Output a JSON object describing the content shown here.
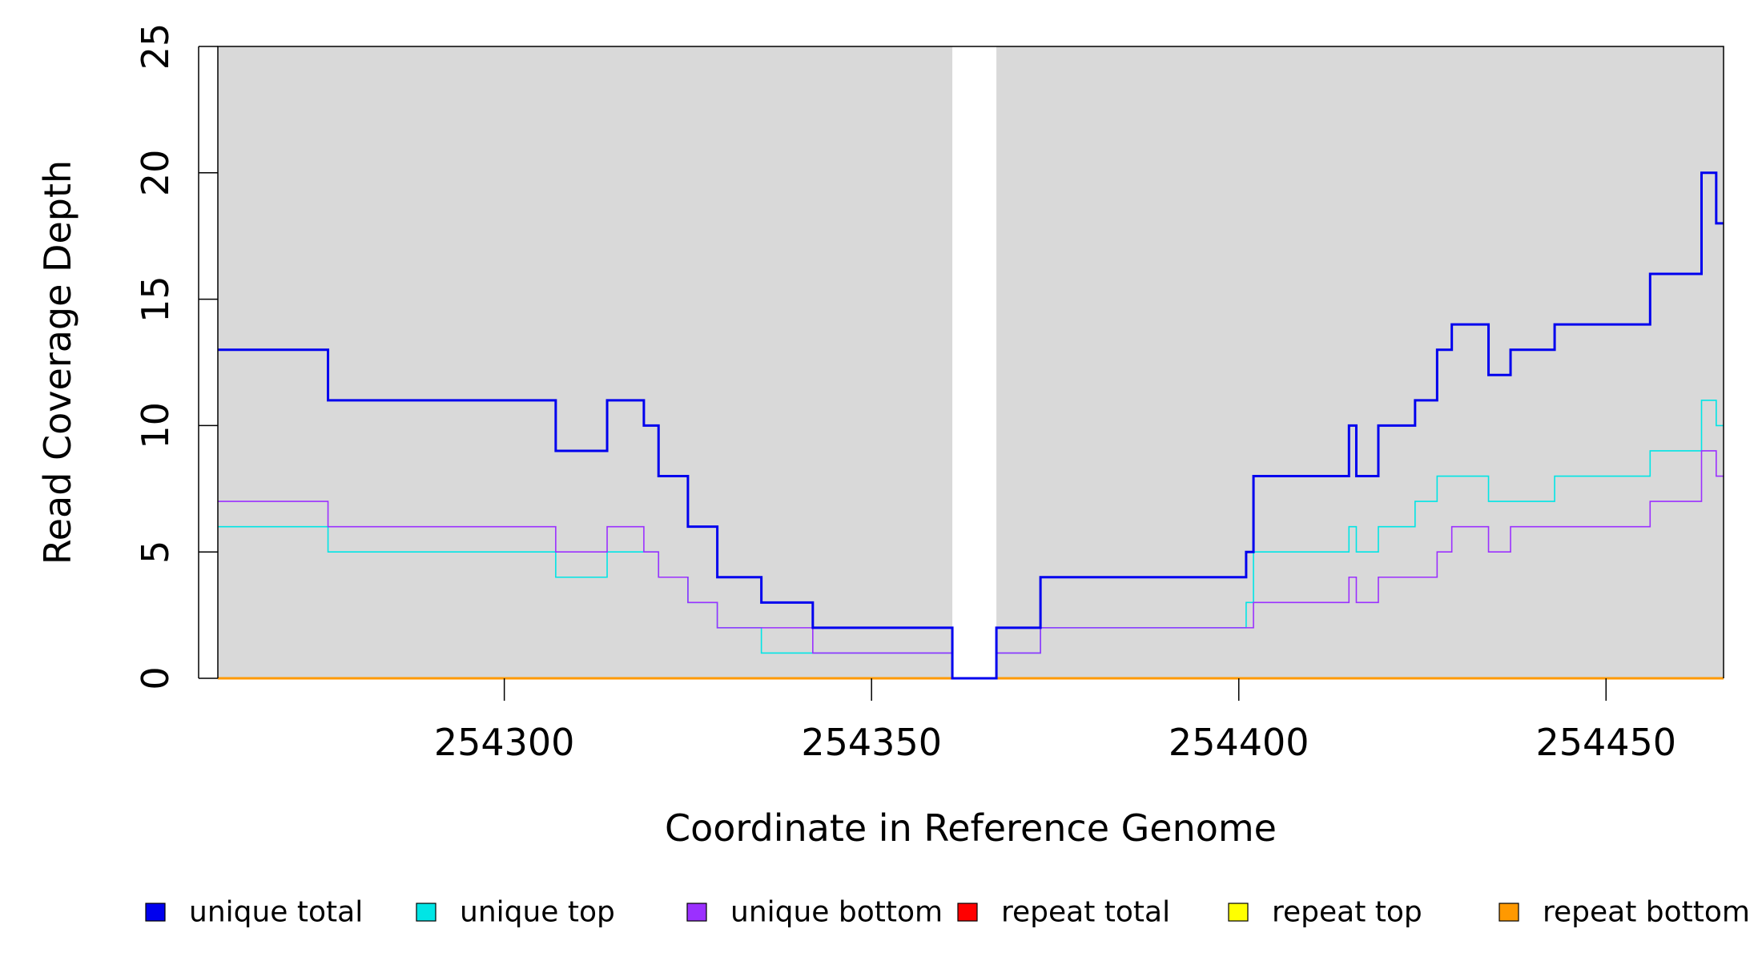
{
  "chart_data": {
    "type": "line",
    "xlabel": "Coordinate in Reference Genome",
    "ylabel": "Read Coverage Depth",
    "xlim": [
      254261,
      254466
    ],
    "ylim": [
      0,
      25
    ],
    "x_ticks": [
      254300,
      254350,
      254400,
      254450
    ],
    "y_ticks": [
      0,
      5,
      10,
      15,
      20,
      25
    ],
    "background_color": "#d9d9d9",
    "gap_region": [
      254361,
      254367
    ],
    "grid": false,
    "legend_position": "bottom",
    "series": [
      {
        "name": "unique total",
        "color": "#0000ee",
        "x": [
          254261,
          254276,
          254307,
          254314,
          254319,
          254321,
          254325,
          254329,
          254335,
          254342,
          254361,
          254367,
          254373,
          254401,
          254402,
          254415,
          254416,
          254419,
          254424,
          254427,
          254429,
          254434,
          254437,
          254443,
          254456,
          254463,
          254465,
          254466
        ],
        "y": [
          13,
          11,
          9,
          11,
          10,
          8,
          6,
          4,
          3,
          2,
          0,
          2,
          4,
          5,
          8,
          10,
          8,
          10,
          11,
          13,
          14,
          12,
          13,
          14,
          16,
          20,
          18,
          18
        ]
      },
      {
        "name": "unique top",
        "color": "#00e5e5",
        "x": [
          254261,
          254276,
          254307,
          254314,
          254319,
          254321,
          254325,
          254329,
          254335,
          254342,
          254361,
          254367,
          254373,
          254401,
          254402,
          254415,
          254416,
          254419,
          254424,
          254427,
          254429,
          254434,
          254437,
          254443,
          254456,
          254463,
          254465,
          254466
        ],
        "y": [
          6,
          5,
          4,
          5,
          5,
          4,
          3,
          2,
          1,
          1,
          0,
          1,
          2,
          3,
          5,
          6,
          5,
          6,
          7,
          8,
          8,
          7,
          7,
          8,
          9,
          11,
          10,
          10
        ]
      },
      {
        "name": "unique bottom",
        "color": "#9b30ff",
        "x": [
          254261,
          254276,
          254307,
          254314,
          254319,
          254321,
          254325,
          254329,
          254335,
          254342,
          254361,
          254367,
          254373,
          254401,
          254402,
          254415,
          254416,
          254419,
          254424,
          254427,
          254429,
          254434,
          254437,
          254443,
          254456,
          254463,
          254465,
          254466
        ],
        "y": [
          7,
          6,
          5,
          6,
          5,
          4,
          3,
          2,
          2,
          1,
          0,
          1,
          2,
          2,
          3,
          4,
          3,
          4,
          4,
          5,
          6,
          5,
          6,
          6,
          7,
          9,
          8,
          8
        ]
      },
      {
        "name": "repeat total",
        "color": "#ff0000",
        "x": [
          254261,
          254466
        ],
        "y": [
          0,
          0
        ]
      },
      {
        "name": "repeat top",
        "color": "#ffff00",
        "x": [
          254261,
          254466
        ],
        "y": [
          0,
          0
        ]
      },
      {
        "name": "repeat bottom",
        "color": "#ff9900",
        "x": [
          254261,
          254466
        ],
        "y": [
          0,
          0
        ]
      }
    ]
  }
}
